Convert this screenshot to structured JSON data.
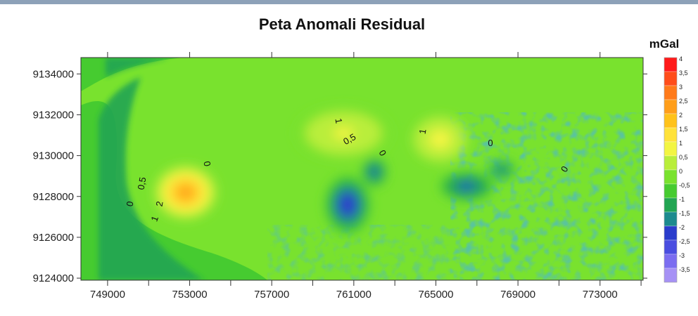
{
  "chart_data": {
    "type": "heatmap",
    "title": "Peta Anomali Residual",
    "colorbar_unit": "mGal",
    "x_ticks": [
      "749000",
      "753000",
      "757000",
      "761000",
      "765000",
      "769000",
      "773000"
    ],
    "y_ticks": [
      "9134000",
      "9132000",
      "9130000",
      "9128000",
      "9126000",
      "9124000"
    ],
    "xlim": [
      747700,
      775100
    ],
    "ylim": [
      9123900,
      9134800
    ],
    "colorbar_levels": [
      "4",
      "3,5",
      "3",
      "2,5",
      "2",
      "1,5",
      "1",
      "0,5",
      "0",
      "-0,5",
      "-1",
      "-1,5",
      "-2",
      "-2,5",
      "-3",
      "-3,5"
    ],
    "colorbar_colors": [
      "#ff1a1a",
      "#ff4d1a",
      "#ff7a1a",
      "#ff9e1a",
      "#ffc21a",
      "#ffe23a",
      "#f3f542",
      "#b9ee3a",
      "#79e22e",
      "#46cb30",
      "#22a552",
      "#1c8a8e",
      "#2a3ccc",
      "#4a4de0",
      "#7b6df0",
      "#a691f5"
    ],
    "contour_labels": [
      "0",
      "0,5",
      "2",
      "1",
      "0",
      "1",
      "0,5",
      "0",
      "1",
      "0",
      "0"
    ],
    "features": [
      {
        "x": 752800,
        "y": 9128200,
        "value": 2.3,
        "rx": 1500,
        "ry": 1300
      },
      {
        "x": 760500,
        "y": 9131100,
        "value": 0.9,
        "rx": 2300,
        "ry": 1300
      },
      {
        "x": 765200,
        "y": 9130800,
        "value": 1.0,
        "rx": 1300,
        "ry": 1100
      },
      {
        "x": 760700,
        "y": 9127600,
        "value": -2.2,
        "rx": 1100,
        "ry": 1400
      },
      {
        "x": 762000,
        "y": 9129200,
        "value": -1.8,
        "rx": 600,
        "ry": 700
      },
      {
        "x": 766500,
        "y": 9128500,
        "value": -1.9,
        "rx": 1300,
        "ry": 700
      },
      {
        "x": 768200,
        "y": 9129300,
        "value": -1.7,
        "rx": 700,
        "ry": 500
      }
    ]
  }
}
